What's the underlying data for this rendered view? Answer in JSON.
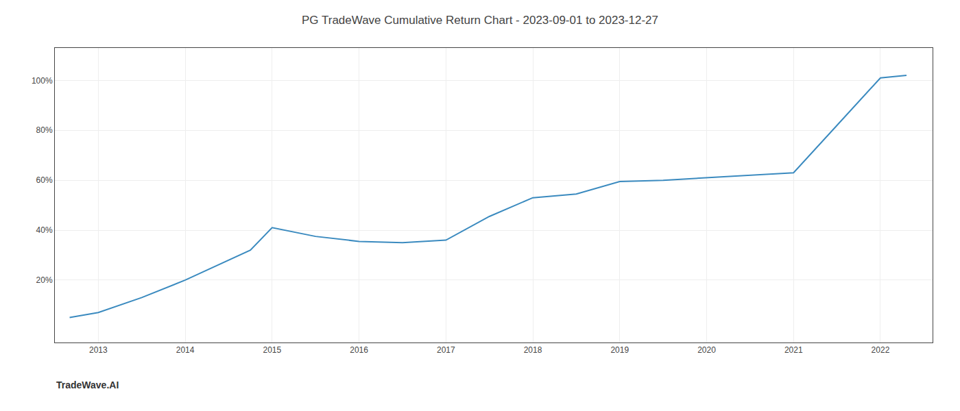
{
  "chart_data": {
    "type": "line",
    "title": "PG TradeWave Cumulative Return Chart - 2023-09-01 to 2023-12-27",
    "annotations": [
      "TradeWave.AI"
    ],
    "x": [
      2012.67,
      2013.0,
      2013.5,
      2014.0,
      2014.75,
      2015.0,
      2015.5,
      2016.0,
      2016.5,
      2017.0,
      2017.5,
      2018.0,
      2018.5,
      2019.0,
      2019.5,
      2020.0,
      2020.25,
      2021.0,
      2021.5,
      2022.0,
      2022.3
    ],
    "values": [
      0.05,
      0.07,
      0.13,
      0.2,
      0.32,
      0.41,
      0.375,
      0.355,
      0.35,
      0.36,
      0.455,
      0.53,
      0.545,
      0.595,
      0.6,
      0.61,
      0.615,
      0.63,
      0.82,
      1.01,
      1.02
    ],
    "color": "#3a8abf",
    "xlim": [
      2012.5,
      2022.6
    ],
    "xticks": [
      2013,
      2014,
      2015,
      2016,
      2017,
      2018,
      2019,
      2020,
      2021,
      2022
    ],
    "ylim": [
      -0.05,
      1.13
    ],
    "yticks": [
      {
        "value": 0.2,
        "label": "20%"
      },
      {
        "value": 0.4,
        "label": "40%"
      },
      {
        "value": 0.6,
        "label": "60%"
      },
      {
        "value": 0.8,
        "label": "80%"
      },
      {
        "value": 1.0,
        "label": "100%"
      }
    ],
    "grid": true
  }
}
